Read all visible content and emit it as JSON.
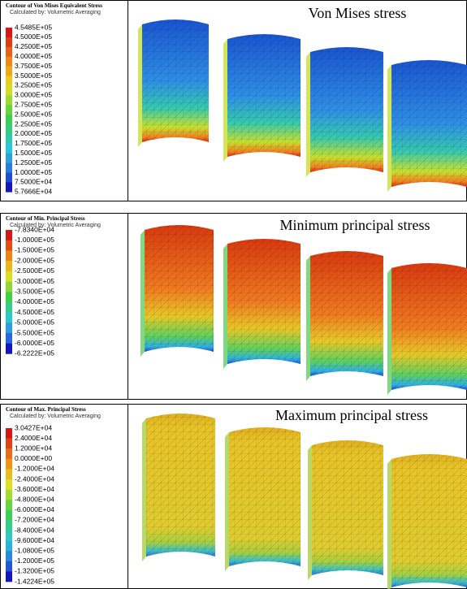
{
  "panels": [
    {
      "legend": {
        "title": "Contour of Von Mises Equivalent Stress",
        "subtitle": "Calculated by: Volumetric Averaging",
        "levels": [
          "4.5485E+05",
          "4.5000E+05",
          "4.2500E+05",
          "4.0000E+05",
          "3.7500E+05",
          "3.5000E+05",
          "3.2500E+05",
          "3.0000E+05",
          "2.7500E+05",
          "2.5000E+05",
          "2.2500E+05",
          "2.0000E+05",
          "1.7500E+05",
          "1.5000E+05",
          "1.2500E+05",
          "1.0000E+05",
          "7.5000E+04",
          "5.7666E+04"
        ]
      },
      "caption": "Von Mises stress"
    },
    {
      "legend": {
        "title": "Contour of Min. Principal Stress",
        "subtitle": "Calculated by: Volumetric Averaging",
        "levels": [
          "-7.8340E+04",
          "-1.0000E+05",
          "-1.5000E+05",
          "-2.0000E+05",
          "-2.5000E+05",
          "-3.0000E+05",
          "-3.5000E+05",
          "-4.0000E+05",
          "-4.5000E+05",
          "-5.0000E+05",
          "-5.5000E+05",
          "-6.0000E+05",
          "-6.2222E+05"
        ]
      },
      "caption": "Minimum principal stress"
    },
    {
      "legend": {
        "title": "Contour of Max. Principal Stress",
        "subtitle": "Calculated by: Volumetric Averaging",
        "levels": [
          "3.0427E+04",
          "2.4000E+04",
          "1.2000E+04",
          "0.0000E+00",
          "-1.2000E+04",
          "-2.4000E+04",
          "-3.6000E+04",
          "-4.8000E+04",
          "-6.0000E+04",
          "-7.2000E+04",
          "-8.4000E+04",
          "-9.6000E+04",
          "-1.0800E+05",
          "-1.2000E+05",
          "-1.3200E+05",
          "-1.4224E+05"
        ]
      },
      "caption": "Maximum principal stress"
    }
  ]
}
